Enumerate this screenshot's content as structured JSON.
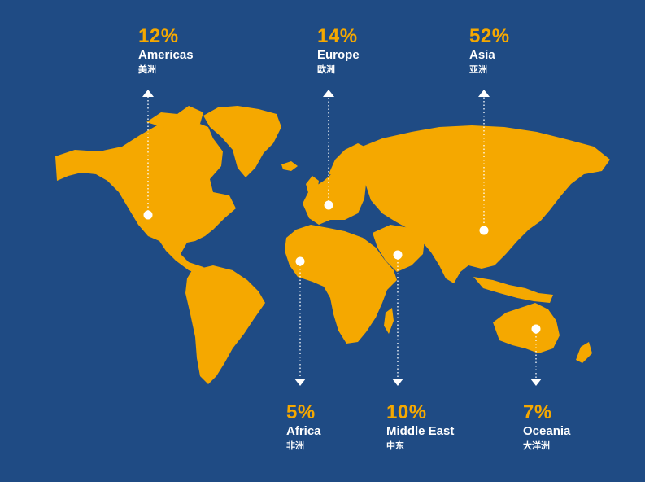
{
  "regions": [
    {
      "id": "americas",
      "percent": "12%",
      "name": "Americas",
      "name_zh": "美洲"
    },
    {
      "id": "europe",
      "percent": "14%",
      "name": "Europe",
      "name_zh": "欧洲"
    },
    {
      "id": "asia",
      "percent": "52%",
      "name": "Asia",
      "name_zh": "亚洲"
    },
    {
      "id": "africa",
      "percent": "5%",
      "name": "Africa",
      "name_zh": "非洲"
    },
    {
      "id": "middle_east",
      "percent": "10%",
      "name": "Middle East",
      "name_zh": "中东"
    },
    {
      "id": "oceania",
      "percent": "7%",
      "name": "Oceania",
      "name_zh": "大洋洲"
    }
  ],
  "colors": {
    "background": "#1f4b84",
    "land": "#f5a800",
    "percent_text": "#f5a800",
    "label_text": "#ffffff",
    "marker": "#ffffff"
  }
}
